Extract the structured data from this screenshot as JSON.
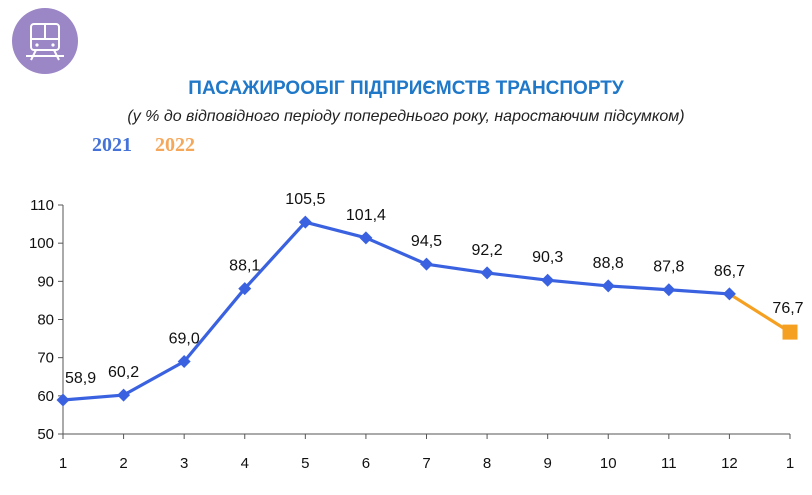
{
  "header": {
    "icon": "train-icon",
    "icon_bg_color": "#9b86c6",
    "title": "ПАСАЖИРООБІГ ПІДПРИЄМСТВ ТРАНСПОРТУ",
    "subtitle": "(у % до відповідного періоду попереднього року, наростаючим підсумком)"
  },
  "legend": {
    "items": [
      {
        "label": "2021",
        "color": "#4472d8"
      },
      {
        "label": "2022",
        "color": "#f5a75a"
      }
    ]
  },
  "chart_data": {
    "type": "line",
    "title": "ПАСАЖИРООБІГ ПІДПРИЄМСТВ ТРАНСПОРТУ",
    "subtitle": "(у % до відповідного періоду попереднього року, наростаючим підсумком)",
    "x": [
      "1",
      "2",
      "3",
      "4",
      "5",
      "6",
      "7",
      "8",
      "9",
      "10",
      "11",
      "12",
      "1"
    ],
    "ylim": [
      50,
      110
    ],
    "yticks": [
      50,
      60,
      70,
      80,
      90,
      100,
      110
    ],
    "grid": false,
    "legend_position": "top-left",
    "series": [
      {
        "name": "2021",
        "color": "#3a62e0",
        "marker": "diamond",
        "points": [
          {
            "x": 0,
            "y": 58.9,
            "label": "58,9"
          },
          {
            "x": 1,
            "y": 60.2,
            "label": "60,2"
          },
          {
            "x": 2,
            "y": 69.0,
            "label": "69,0"
          },
          {
            "x": 3,
            "y": 88.1,
            "label": "88,1"
          },
          {
            "x": 4,
            "y": 105.5,
            "label": "105,5"
          },
          {
            "x": 5,
            "y": 101.4,
            "label": "101,4"
          },
          {
            "x": 6,
            "y": 94.5,
            "label": "94,5"
          },
          {
            "x": 7,
            "y": 92.2,
            "label": "92,2"
          },
          {
            "x": 8,
            "y": 90.3,
            "label": "90,3"
          },
          {
            "x": 9,
            "y": 88.8,
            "label": "88,8"
          },
          {
            "x": 10,
            "y": 87.8,
            "label": "87,8"
          },
          {
            "x": 11,
            "y": 86.7,
            "label": "86,7"
          }
        ]
      },
      {
        "name": "2022",
        "color": "#f5a020",
        "marker": "square",
        "points": [
          {
            "x": 11,
            "y": 86.7,
            "label": ""
          },
          {
            "x": 12,
            "y": 76.7,
            "label": "76,7"
          }
        ]
      }
    ]
  }
}
